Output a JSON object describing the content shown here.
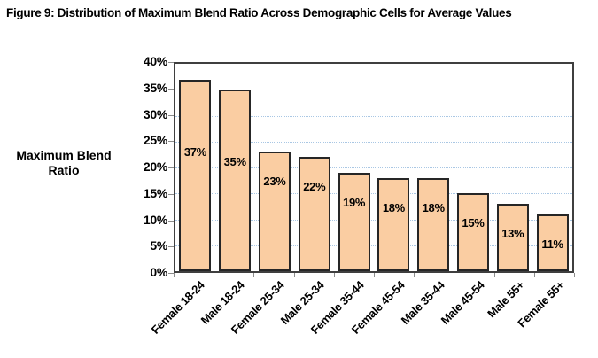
{
  "title": "Figure 9: Distribution of Maximum Blend Ratio Across Demographic Cells for Average Values",
  "chart_data": {
    "type": "bar",
    "title": "Figure 9: Distribution of Maximum Blend Ratio Across Demographic Cells for Average Values",
    "ylabel": "Maximum Blend Ratio",
    "ylabel_lines": [
      "Maximum Blend",
      "Ratio"
    ],
    "categories": [
      "Female 18-24",
      "Male 18-24",
      "Female 25-34",
      "Male 25-34",
      "Female 35-44",
      "Female 45-54",
      "Male 35-44",
      "Male 45-54",
      "Male 55+",
      "Female 55+"
    ],
    "values": [
      37,
      35,
      23,
      22,
      19,
      18,
      18,
      15,
      13,
      11
    ],
    "bar_labels": [
      "37%",
      "35%",
      "23%",
      "22%",
      "19%",
      "18%",
      "18%",
      "15%",
      "13%",
      "11%"
    ],
    "y_ticks": [
      "40%",
      "35%",
      "30%",
      "25%",
      "20%",
      "15%",
      "10%",
      "5%",
      "0%"
    ],
    "ylim": [
      0,
      40
    ],
    "grid": {
      "horizontal": true,
      "style": "dotted",
      "interval_pct": 5
    },
    "legend": "none",
    "colors": {
      "bar_fill": "#FACDA2",
      "bar_border": "#262626",
      "gridline": "#A9C7E4",
      "plot_border": "#3F3F3F",
      "tick": "#8C8C8C",
      "text": "#000000",
      "background": "#FFFFFF"
    }
  }
}
